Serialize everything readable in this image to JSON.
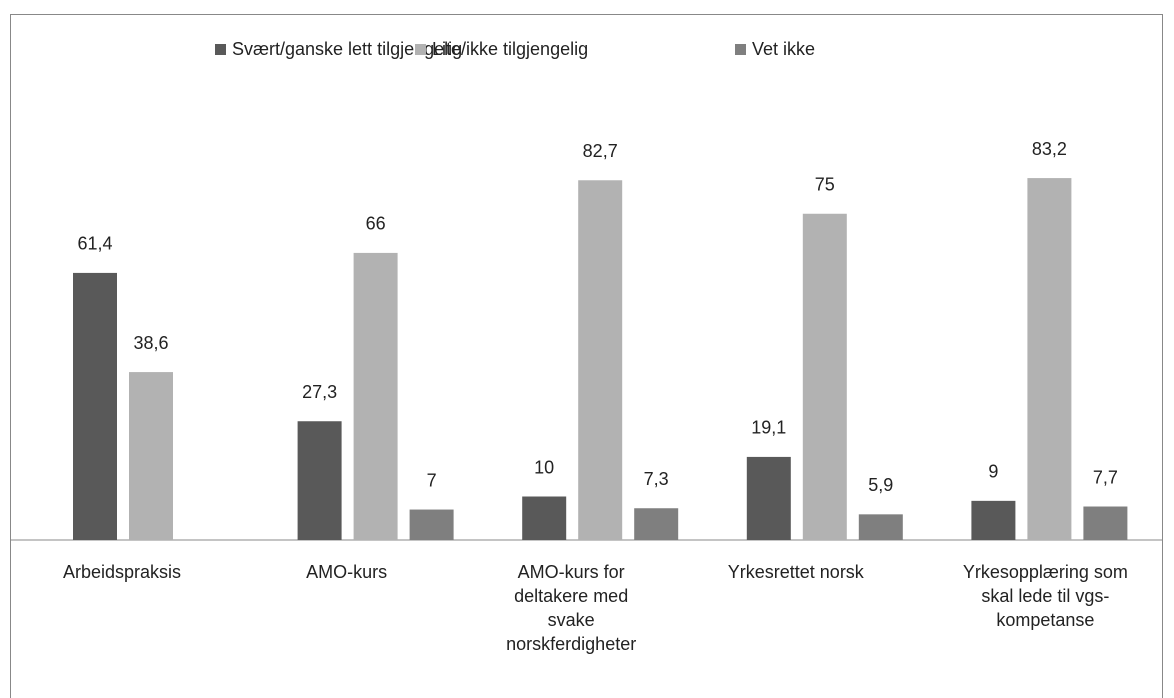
{
  "chart_data": {
    "type": "bar",
    "categories": [
      "Arbeidspraksis",
      "AMO-kurs",
      "AMO-kurs for\ndeltakere med\nsvake\nnorskferdigheter",
      "Yrkesrettet norsk",
      "Yrkesopplæring som\nskal lede til vgs-\nkompetanse"
    ],
    "series": [
      {
        "name": "Svært/ganske lett tilgjengelig",
        "color": "#595959",
        "values": [
          61.4,
          27.3,
          10,
          19.1,
          9
        ],
        "value_labels": [
          "61,4",
          "27,3",
          "10",
          "19,1",
          "9"
        ]
      },
      {
        "name": "Lite/ikke tilgjengelig",
        "color": "#b2b2b2",
        "values": [
          38.6,
          66,
          82.7,
          75,
          83.2
        ],
        "value_labels": [
          "38,6",
          "66",
          "82,7",
          "75",
          "83,2"
        ]
      },
      {
        "name": "Vet ikke",
        "color": "#7f7f7f",
        "values": [
          null,
          7,
          7.3,
          5.9,
          7.7
        ],
        "value_labels": [
          null,
          "7",
          "7,3",
          "5,9",
          "7,7"
        ]
      }
    ],
    "legend": "top"
  }
}
